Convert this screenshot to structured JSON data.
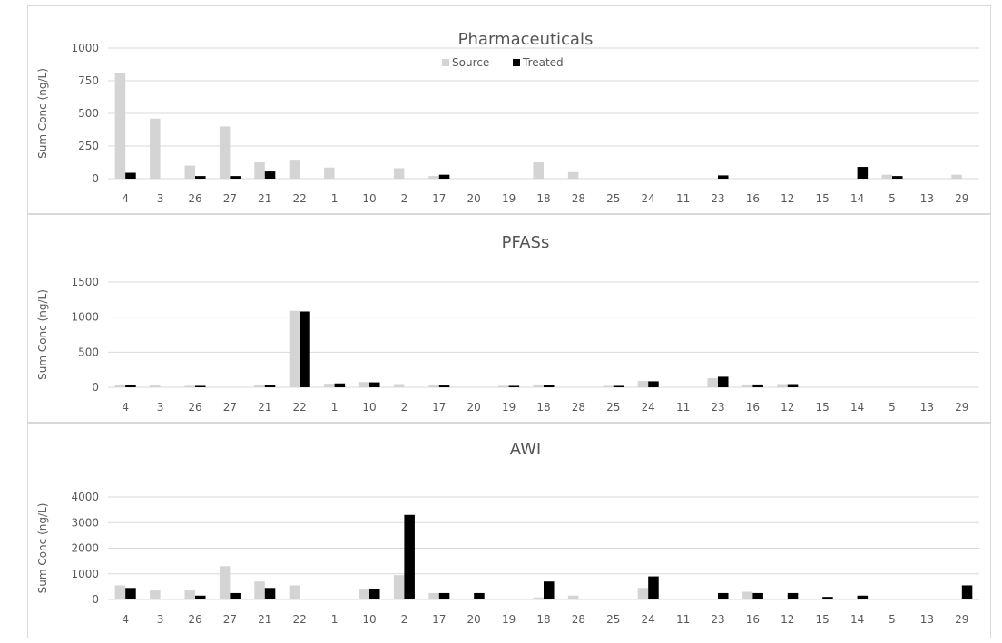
{
  "colors": {
    "source": "#d4d4d4",
    "treated": "#000000",
    "grid": "#d9d9d9",
    "text": "#595959"
  },
  "chart_data": [
    {
      "type": "bar",
      "title": "Pharmaceuticals",
      "ylabel": "Sum Conc (ng/L)",
      "ylim": [
        0,
        1000
      ],
      "yticks": [
        0,
        250,
        500,
        750,
        1000
      ],
      "legend": "top-center",
      "categories": [
        "4",
        "3",
        "26",
        "27",
        "21",
        "22",
        "1",
        "10",
        "2",
        "17",
        "20",
        "19",
        "18",
        "28",
        "25",
        "24",
        "11",
        "23",
        "16",
        "12",
        "15",
        "14",
        "5",
        "13",
        "29"
      ],
      "series": [
        {
          "name": "Source",
          "values": [
            810,
            460,
            100,
            400,
            125,
            145,
            85,
            0,
            80,
            20,
            0,
            0,
            125,
            50,
            0,
            0,
            0,
            0,
            0,
            0,
            0,
            0,
            30,
            0,
            30
          ]
        },
        {
          "name": "Treated",
          "values": [
            45,
            0,
            20,
            20,
            55,
            0,
            0,
            0,
            0,
            30,
            0,
            0,
            0,
            0,
            0,
            0,
            0,
            25,
            0,
            0,
            0,
            90,
            20,
            0,
            0
          ]
        }
      ]
    },
    {
      "type": "bar",
      "title": "PFASs",
      "ylabel": "Sum Conc (ng/L)",
      "ylim": [
        0,
        1500
      ],
      "yticks": [
        0,
        500,
        1000,
        1500
      ],
      "categories": [
        "4",
        "3",
        "26",
        "27",
        "21",
        "22",
        "1",
        "10",
        "2",
        "17",
        "20",
        "19",
        "18",
        "28",
        "25",
        "24",
        "11",
        "23",
        "16",
        "12",
        "15",
        "14",
        "5",
        "13",
        "29"
      ],
      "series": [
        {
          "name": "Source",
          "values": [
            30,
            25,
            20,
            0,
            30,
            1090,
            50,
            75,
            45,
            25,
            0,
            20,
            40,
            0,
            20,
            90,
            0,
            130,
            40,
            45,
            0,
            0,
            0,
            0,
            0
          ]
        },
        {
          "name": "Treated",
          "values": [
            35,
            0,
            20,
            0,
            30,
            1080,
            55,
            70,
            0,
            25,
            0,
            20,
            30,
            0,
            20,
            85,
            0,
            150,
            40,
            45,
            0,
            0,
            0,
            0,
            0
          ]
        }
      ]
    },
    {
      "type": "bar",
      "title": "AWI",
      "ylabel": "Sum Conc (ng/L)",
      "ylim": [
        0,
        4000
      ],
      "yticks": [
        0,
        1000,
        2000,
        3000,
        4000
      ],
      "categories": [
        "4",
        "3",
        "26",
        "27",
        "21",
        "22",
        "1",
        "10",
        "2",
        "17",
        "20",
        "19",
        "18",
        "28",
        "25",
        "24",
        "11",
        "23",
        "16",
        "12",
        "15",
        "14",
        "5",
        "13",
        "29"
      ],
      "series": [
        {
          "name": "Source",
          "values": [
            550,
            350,
            350,
            1300,
            700,
            550,
            0,
            400,
            950,
            250,
            0,
            0,
            80,
            150,
            0,
            450,
            0,
            0,
            300,
            0,
            0,
            0,
            0,
            0,
            0
          ]
        },
        {
          "name": "Treated",
          "values": [
            450,
            0,
            150,
            250,
            450,
            0,
            0,
            400,
            3300,
            250,
            250,
            0,
            700,
            0,
            0,
            900,
            0,
            250,
            250,
            250,
            100,
            150,
            0,
            0,
            550
          ]
        }
      ]
    }
  ]
}
